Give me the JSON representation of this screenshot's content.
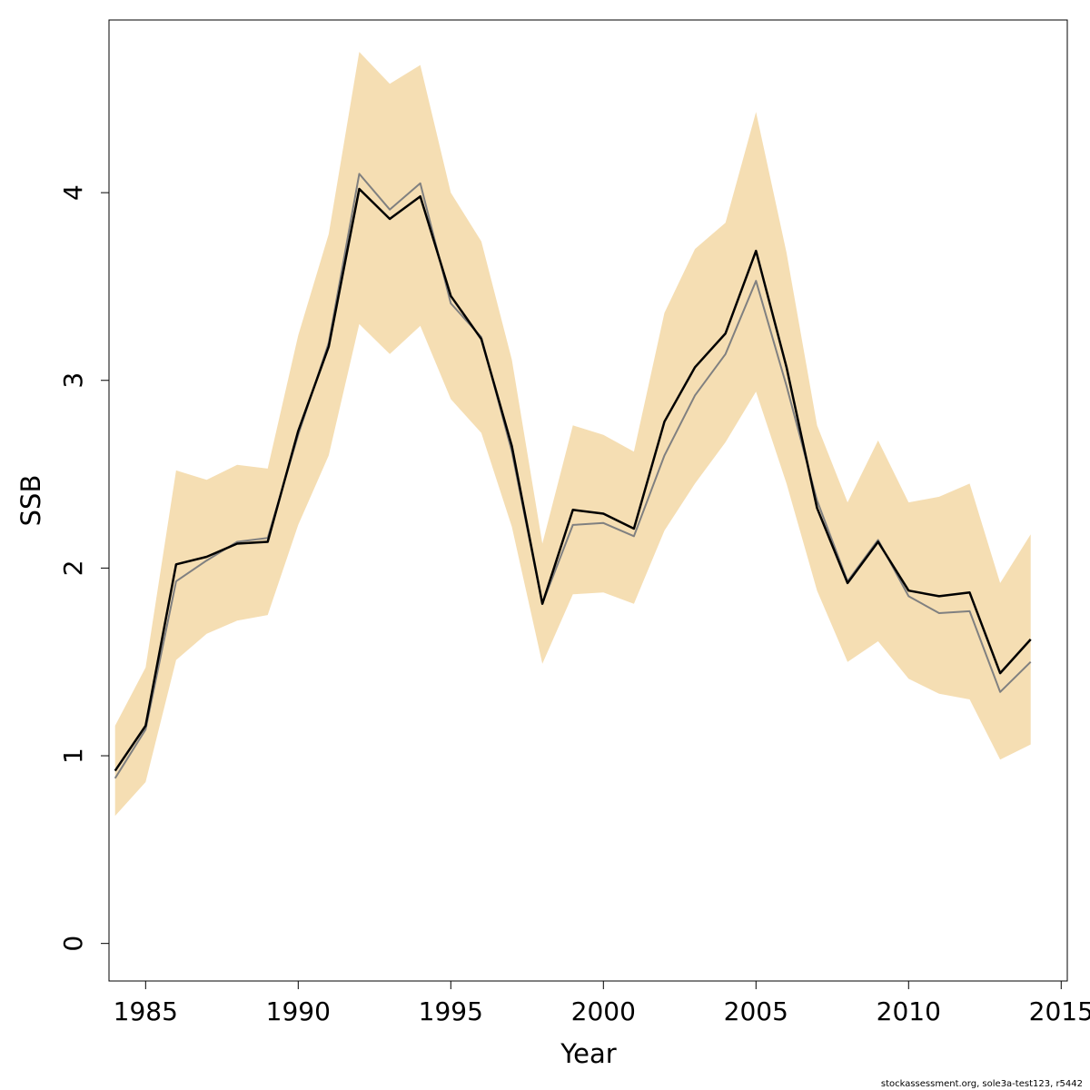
{
  "chart_data": {
    "type": "line",
    "xlabel": "Year",
    "ylabel": "SSB",
    "xlim": [
      1983.8,
      2015.2
    ],
    "ylim": [
      -0.2,
      4.92
    ],
    "x_ticks": [
      1985,
      1990,
      1995,
      2000,
      2005,
      2010,
      2015
    ],
    "y_ticks": [
      0,
      1,
      2,
      3,
      4
    ],
    "grid": false,
    "legend": "none",
    "x": [
      1984,
      1985,
      1986,
      1987,
      1988,
      1989,
      1990,
      1991,
      1992,
      1993,
      1994,
      1995,
      1996,
      1997,
      1998,
      1999,
      2000,
      2001,
      2002,
      2003,
      2004,
      2005,
      2006,
      2007,
      2008,
      2009,
      2010,
      2011,
      2012,
      2013,
      2014
    ],
    "band": {
      "color": "#F5DEB3",
      "upper": [
        1.16,
        1.47,
        2.52,
        2.47,
        2.55,
        2.53,
        3.24,
        3.78,
        4.75,
        4.58,
        4.68,
        4.0,
        3.74,
        3.11,
        2.13,
        2.76,
        2.71,
        2.62,
        3.36,
        3.7,
        3.84,
        4.43,
        3.68,
        2.76,
        2.35,
        2.68,
        2.35,
        2.38,
        2.45,
        1.92,
        2.18
      ],
      "lower": [
        0.68,
        0.86,
        1.51,
        1.65,
        1.72,
        1.75,
        2.23,
        2.6,
        3.3,
        3.14,
        3.29,
        2.9,
        2.72,
        2.22,
        1.49,
        1.86,
        1.87,
        1.81,
        2.2,
        2.45,
        2.67,
        2.94,
        2.45,
        1.88,
        1.5,
        1.61,
        1.41,
        1.33,
        1.3,
        0.98,
        1.06
      ]
    },
    "series": [
      {
        "color": "#808080",
        "values": [
          0.88,
          1.14,
          1.93,
          2.04,
          2.14,
          2.16,
          2.71,
          3.2,
          4.1,
          3.91,
          4.05,
          3.41,
          3.23,
          2.62,
          1.81,
          2.23,
          2.24,
          2.17,
          2.6,
          2.92,
          3.14,
          3.53,
          2.97,
          2.36,
          1.93,
          2.15,
          1.85,
          1.76,
          1.77,
          1.34,
          1.5
        ]
      },
      {
        "color": "#000000",
        "values": [
          0.92,
          1.16,
          2.02,
          2.06,
          2.13,
          2.14,
          2.73,
          3.18,
          4.02,
          3.86,
          3.98,
          3.45,
          3.22,
          2.65,
          1.81,
          2.31,
          2.29,
          2.21,
          2.78,
          3.07,
          3.25,
          3.69,
          3.07,
          2.32,
          1.92,
          2.14,
          1.88,
          1.85,
          1.87,
          1.44,
          1.62
        ]
      }
    ],
    "footer": "stockassessment.org, sole3a-test123, r5442"
  }
}
